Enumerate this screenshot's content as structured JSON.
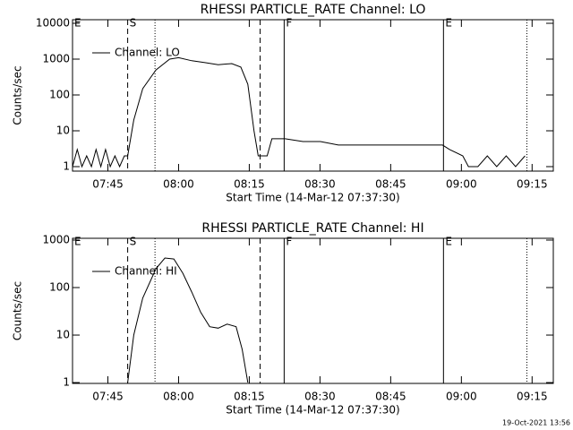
{
  "chart_data": [
    {
      "type": "line",
      "title": "RHESSI PARTICLE_RATE Channel: LO",
      "x_label": "Start Time (14-Mar-12 07:37:30)",
      "y_label": "Counts/sec",
      "x": [
        0,
        1,
        2,
        3,
        4,
        5,
        6,
        7,
        8,
        9,
        10,
        11,
        11.7,
        13,
        14.9,
        17.7,
        20.6,
        22.5,
        25.3,
        28.1,
        30.9,
        33.8,
        35.7,
        37.2,
        38.5,
        39.4,
        41.3,
        42.3,
        45.1,
        48.9,
        52.6,
        56.4,
        60.2,
        64,
        67.7,
        71.5,
        75.3,
        78.5,
        80,
        82.8,
        84,
        86,
        88,
        90,
        92,
        94,
        96
      ],
      "series": [
        {
          "name": "Channel: LO",
          "color": "#000000",
          "values": [
            1,
            3,
            1,
            2,
            1,
            3,
            1,
            3,
            1,
            2,
            1,
            2,
            2,
            20,
            150,
            500,
            1000,
            1100,
            900,
            800,
            700,
            750,
            600,
            200,
            10,
            2,
            2,
            6,
            6,
            5,
            5,
            4,
            4,
            4,
            4,
            4,
            4,
            4,
            3,
            2,
            1,
            1,
            2,
            1,
            2,
            1,
            2
          ]
        }
      ],
      "xlim": [
        0,
        102
      ],
      "ylim": [
        0.75,
        12600
      ],
      "log_y": true,
      "xticks": [
        {
          "value": 7.5,
          "label": "07:45"
        },
        {
          "value": 22.5,
          "label": "08:00"
        },
        {
          "value": 37.5,
          "label": "08:15"
        },
        {
          "value": 52.5,
          "label": "08:30"
        },
        {
          "value": 67.5,
          "label": "08:45"
        },
        {
          "value": 82.5,
          "label": "09:00"
        },
        {
          "value": 97.5,
          "label": "09:15"
        }
      ],
      "yticks": [
        1,
        10,
        100,
        1000,
        10000
      ],
      "annotations": [
        {
          "x": 0,
          "label": "E",
          "style": "solid"
        },
        {
          "x": 11.7,
          "label": "S",
          "style": "dashed"
        },
        {
          "x": 17.5,
          "label": "",
          "style": "dotted"
        },
        {
          "x": 39.8,
          "label": "",
          "style": "dashed"
        },
        {
          "x": 44.9,
          "label": "F",
          "style": "solid"
        },
        {
          "x": 78.7,
          "label": "E",
          "style": "solid"
        },
        {
          "x": 96.4,
          "label": "",
          "style": "dotted"
        }
      ]
    },
    {
      "type": "line",
      "title": "RHESSI PARTICLE_RATE Channel: HI",
      "x_label": "Start Time (14-Mar-12 07:37:30)",
      "y_label": "Counts/sec",
      "x": [
        11.7,
        13,
        14.9,
        17.7,
        19.6,
        21.5,
        23.4,
        25.3,
        27.2,
        29.1,
        30.9,
        32.8,
        34.7,
        36,
        37.2
      ],
      "series": [
        {
          "name": "Channel: HI",
          "color": "#000000",
          "values": [
            1,
            10,
            60,
            250,
            420,
            400,
            200,
            80,
            30,
            15,
            14,
            17,
            15,
            5,
            1
          ]
        }
      ],
      "xlim": [
        0,
        102
      ],
      "ylim": [
        0.96,
        1090
      ],
      "log_y": true,
      "xticks": [
        {
          "value": 7.5,
          "label": "07:45"
        },
        {
          "value": 22.5,
          "label": "08:00"
        },
        {
          "value": 37.5,
          "label": "08:15"
        },
        {
          "value": 52.5,
          "label": "08:30"
        },
        {
          "value": 67.5,
          "label": "08:45"
        },
        {
          "value": 82.5,
          "label": "09:00"
        },
        {
          "value": 97.5,
          "label": "09:15"
        }
      ],
      "yticks": [
        1,
        10,
        100,
        1000
      ],
      "annotations": [
        {
          "x": 0,
          "label": "E",
          "style": "solid"
        },
        {
          "x": 11.7,
          "label": "S",
          "style": "dashed"
        },
        {
          "x": 17.5,
          "label": "",
          "style": "dotted"
        },
        {
          "x": 39.8,
          "label": "",
          "style": "dashed"
        },
        {
          "x": 44.9,
          "label": "F",
          "style": "solid"
        },
        {
          "x": 78.7,
          "label": "E",
          "style": "solid"
        },
        {
          "x": 96.4,
          "label": "",
          "style": "dotted"
        }
      ]
    }
  ],
  "footer": "19-Oct-2021 13:56"
}
